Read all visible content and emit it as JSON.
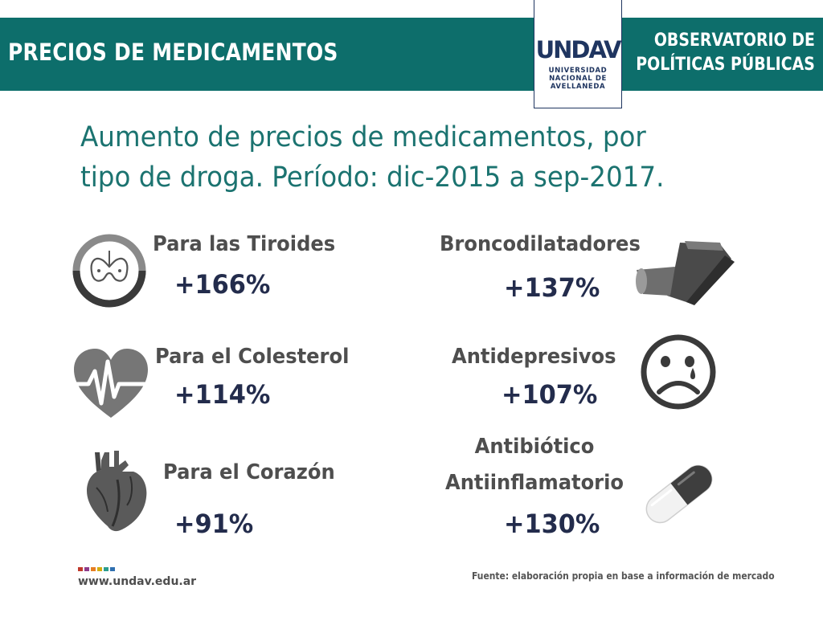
{
  "header": {
    "title": "PRECIOS DE MEDICAMENTOS",
    "observatorio_line1": "OBSERVATORIO DE",
    "observatorio_line2": "POLÍTICAS PÚBLICAS",
    "logo_word": "UNDAV",
    "logo_line1": "UNIVERSIDAD",
    "logo_line2": "NACIONAL DE",
    "logo_line3": "AVELLANEDA",
    "colors": {
      "bar": "#0d6e6b",
      "logo": "#1f3560"
    }
  },
  "subtitle": {
    "line1": "Aumento de precios de medicamentos, por",
    "line2": "tipo de droga. Período: dic-2015 a sep-2017."
  },
  "items": [
    {
      "label": "Para las Tiroides",
      "value": "+166%",
      "icon": "thyroid-icon"
    },
    {
      "label": "Broncodilatadores",
      "value": "+137%",
      "icon": "inhaler-icon"
    },
    {
      "label": "Para el Colesterol",
      "value": "+114%",
      "icon": "heartbeat-icon"
    },
    {
      "label": "Antidepresivos",
      "value": "+107%",
      "icon": "sad-face-icon"
    },
    {
      "label": "Para el Corazón",
      "value": "+91%",
      "icon": "anatomical-heart-icon"
    },
    {
      "label_line1": "Antibiótico",
      "label_line2": "Antiinflamatorio",
      "value": "+130%",
      "icon": "capsule-icon"
    }
  ],
  "footer": {
    "url": "www.undav.edu.ar",
    "source": "Fuente: elaboración propia en base a información de mercado",
    "square_colors": [
      "#c0392b",
      "#8e3b8a",
      "#e67e22",
      "#d4ac0d",
      "#2a9d8f",
      "#2f6fb0"
    ]
  }
}
